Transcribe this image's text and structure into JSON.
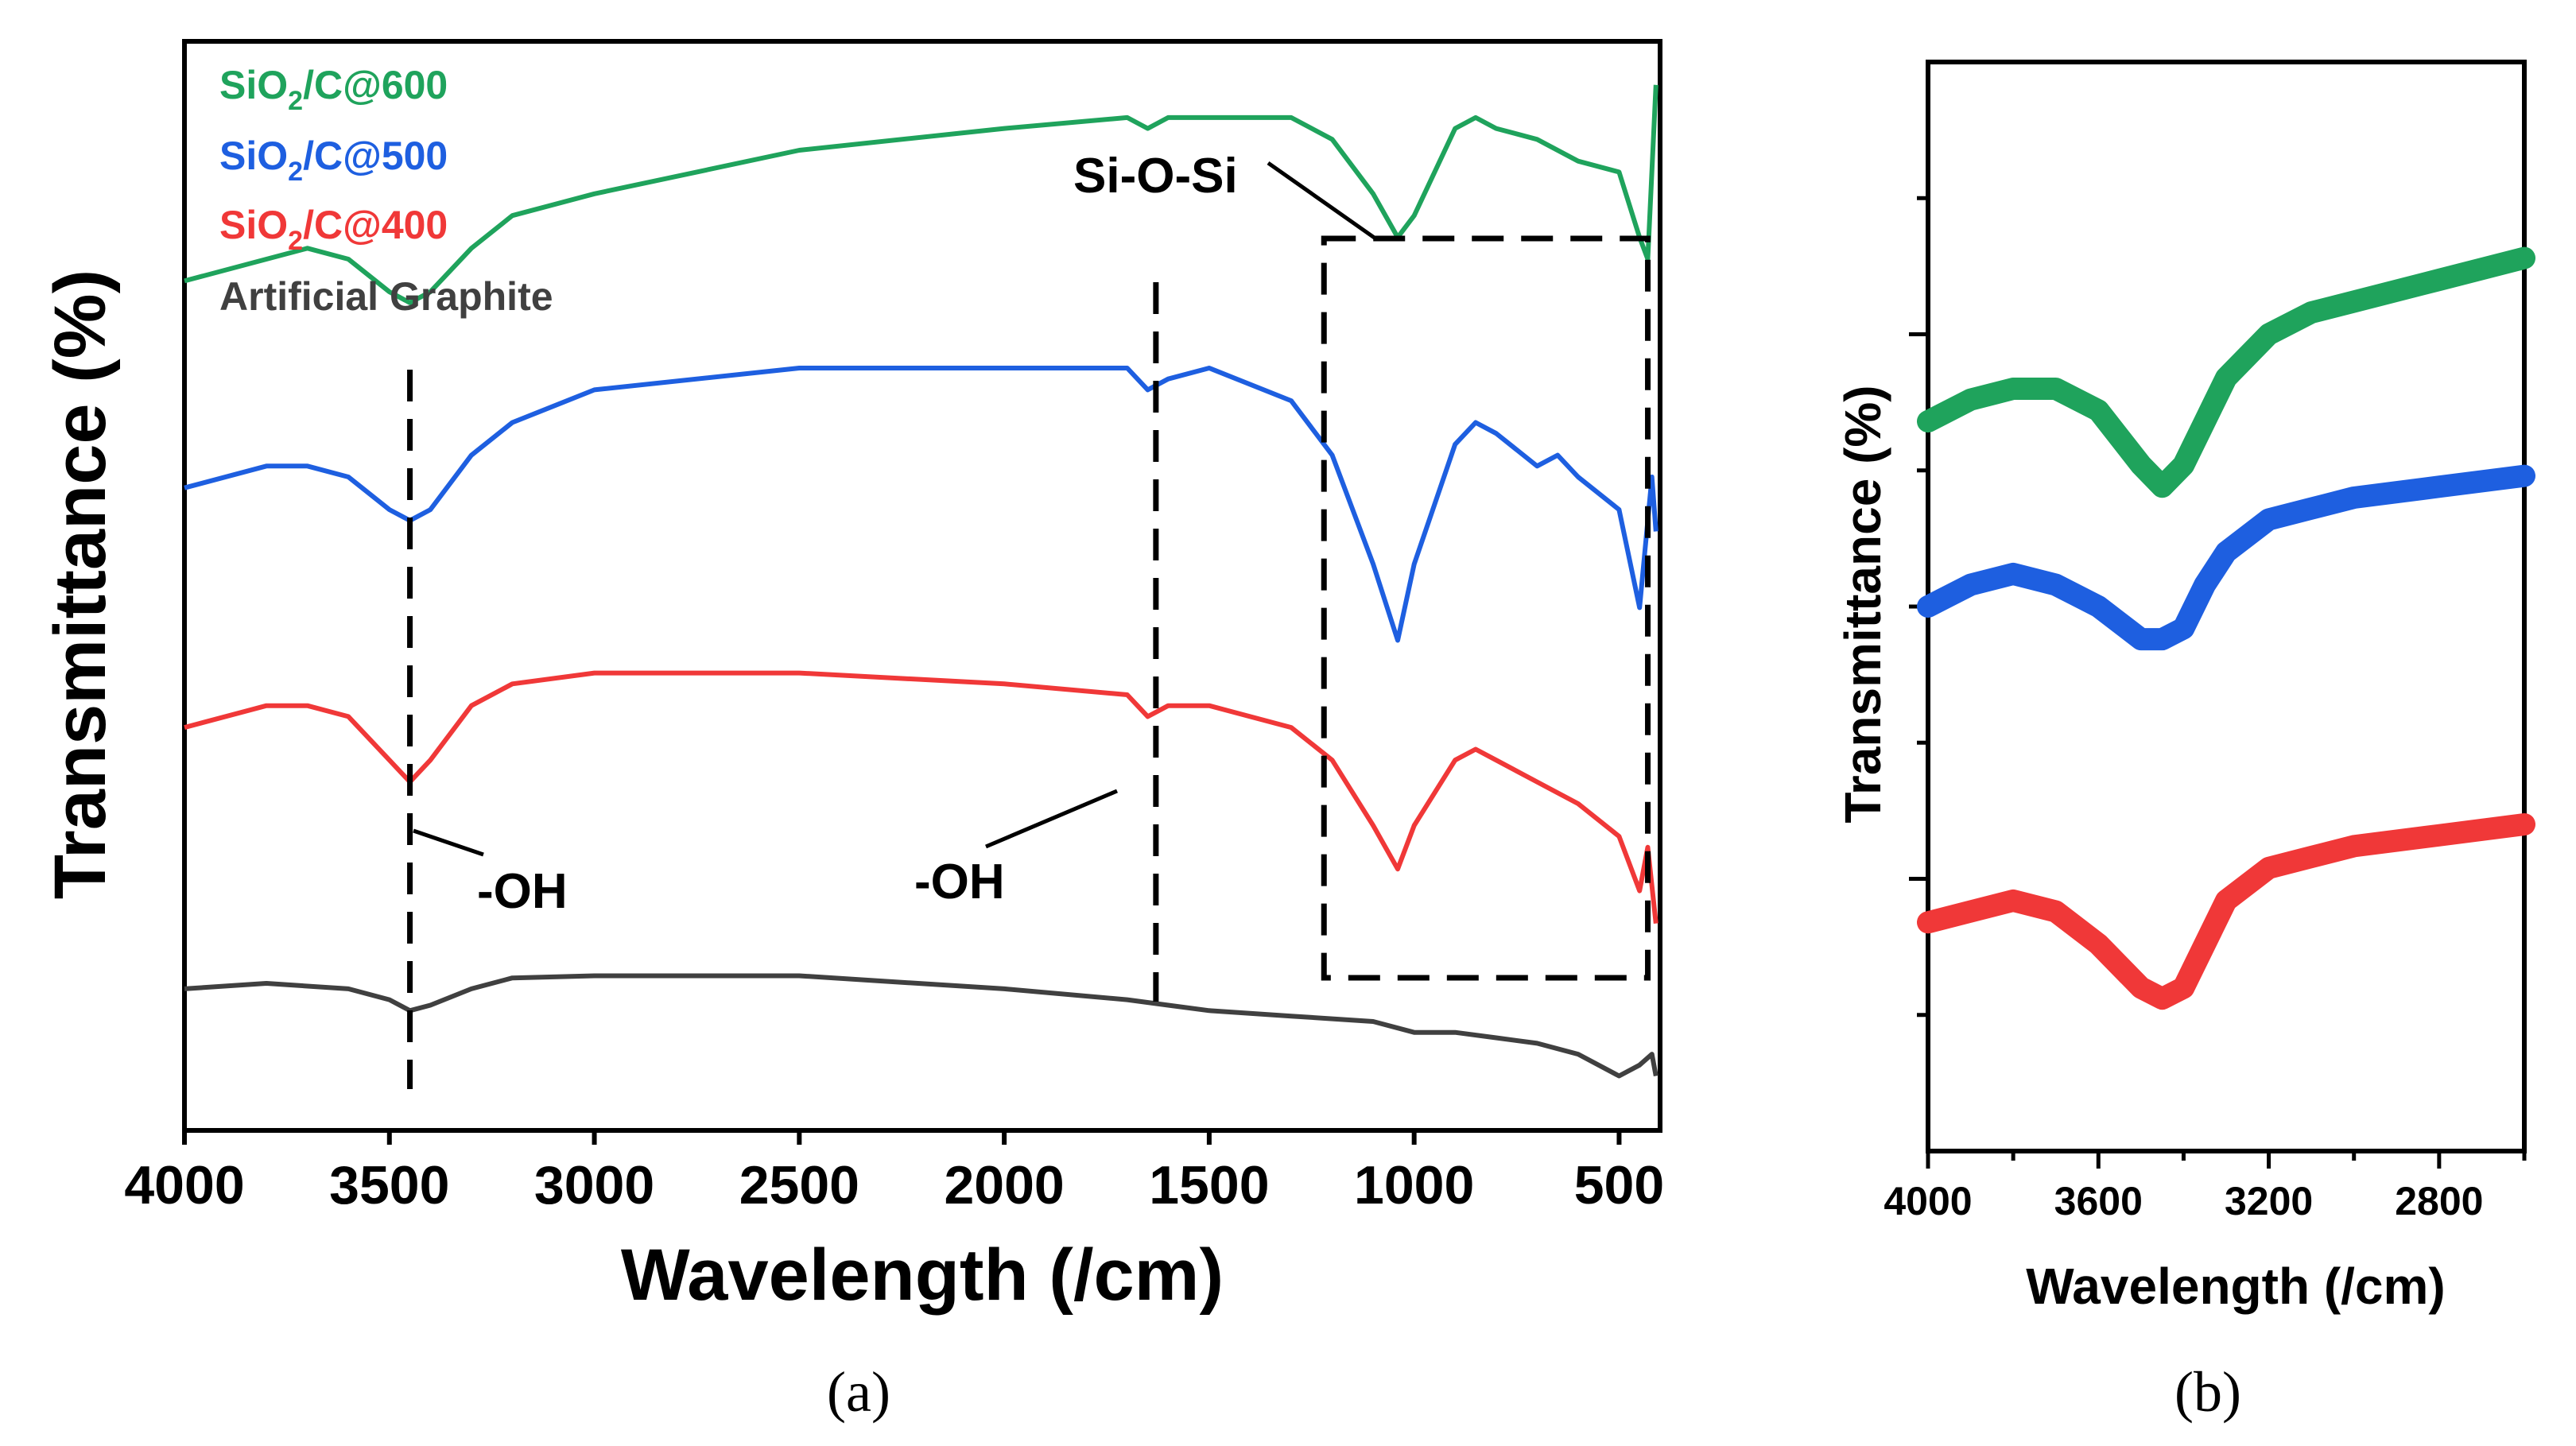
{
  "colors": {
    "green": "#1fa35c",
    "blue": "#1e5fe0",
    "red": "#f03838",
    "black": "#404040",
    "axis": "#000000"
  },
  "chart_data": [
    {
      "panel_label": "(a)",
      "type": "line",
      "title": "",
      "xlabel": "Wavelength (/cm)",
      "ylabel": "Transmittance (%)",
      "xlim": [
        4000,
        400
      ],
      "x_reversed": true,
      "xticks": [
        4000,
        3500,
        3000,
        2500,
        2000,
        1500,
        1000,
        500
      ],
      "ylim": [
        0,
        100
      ],
      "y_units": "arbitrary (curves offset vertically)",
      "legend": {
        "placement": "top-left",
        "entries": [
          {
            "text": "SiO2/C@600",
            "base": "SiO",
            "sub": "2",
            "rest": "/C@600",
            "color": "#1fa35c"
          },
          {
            "text": "SiO2/C@500",
            "base": "SiO",
            "sub": "2",
            "rest": "/C@500",
            "color": "#1e5fe0"
          },
          {
            "text": "SiO2/C@400",
            "base": "SiO",
            "sub": "2",
            "rest": "/C@400",
            "color": "#f03838"
          },
          {
            "text": "Artificial Graphite",
            "base": "Artificial Graphite",
            "sub": "",
            "rest": "",
            "color": "#404040"
          }
        ]
      },
      "annotations": {
        "oh_left": "-OH",
        "oh_right": "-OH",
        "sioSi": "Si-O-Si",
        "oh_left_line_x": 3450,
        "oh_right_line_x": 1630,
        "box_x": [
          1220,
          430
        ]
      },
      "series": [
        {
          "name": "SiO2/C@600",
          "color": "#1fa35c",
          "x": [
            4000,
            3800,
            3700,
            3600,
            3500,
            3450,
            3400,
            3300,
            3200,
            3000,
            2500,
            2000,
            1700,
            1650,
            1600,
            1500,
            1300,
            1200,
            1100,
            1040,
            1000,
            900,
            850,
            800,
            700,
            600,
            500,
            450,
            430,
            410
          ],
          "y": [
            78,
            80,
            81,
            80,
            77,
            76,
            77,
            81,
            84,
            86,
            90,
            92,
            93,
            92,
            93,
            93,
            93,
            91,
            86,
            82,
            84,
            92,
            93,
            92,
            91,
            89,
            88,
            82,
            80,
            96
          ]
        },
        {
          "name": "SiO2/C@500",
          "color": "#1e5fe0",
          "x": [
            4000,
            3800,
            3700,
            3600,
            3500,
            3450,
            3400,
            3300,
            3200,
            3000,
            2500,
            2000,
            1700,
            1650,
            1600,
            1500,
            1300,
            1200,
            1100,
            1040,
            1000,
            900,
            850,
            800,
            700,
            650,
            600,
            500,
            450,
            420,
            410
          ],
          "y": [
            59,
            61,
            61,
            60,
            57,
            56,
            57,
            62,
            65,
            68,
            70,
            70,
            70,
            68,
            69,
            70,
            67,
            62,
            52,
            45,
            52,
            63,
            65,
            64,
            61,
            62,
            60,
            57,
            48,
            60,
            55
          ]
        },
        {
          "name": "SiO2/C@400",
          "color": "#f03838",
          "x": [
            4000,
            3800,
            3700,
            3600,
            3500,
            3450,
            3400,
            3300,
            3200,
            3000,
            2500,
            2000,
            1700,
            1650,
            1600,
            1500,
            1300,
            1200,
            1100,
            1040,
            1000,
            900,
            850,
            800,
            700,
            600,
            500,
            450,
            430,
            410
          ],
          "y": [
            37,
            39,
            39,
            38,
            34,
            32,
            34,
            39,
            41,
            42,
            42,
            41,
            40,
            38,
            39,
            39,
            37,
            34,
            28,
            24,
            28,
            34,
            35,
            34,
            32,
            30,
            27,
            22,
            26,
            19
          ]
        },
        {
          "name": "Artificial Graphite",
          "color": "#404040",
          "x": [
            4000,
            3800,
            3600,
            3500,
            3450,
            3400,
            3300,
            3200,
            3000,
            2500,
            2000,
            1700,
            1600,
            1500,
            1300,
            1100,
            1000,
            900,
            800,
            700,
            600,
            500,
            450,
            420,
            410
          ],
          "y": [
            13,
            13.5,
            13,
            12,
            11,
            11.5,
            13,
            14,
            14.2,
            14.2,
            13,
            12,
            11.5,
            11,
            10.5,
            10,
            9,
            9,
            8.5,
            8,
            7,
            5,
            6,
            7,
            5
          ]
        }
      ]
    },
    {
      "panel_label": "(b)",
      "type": "line",
      "title": "",
      "xlabel": "Wavelength (/cm)",
      "ylabel": "Transmittance (%)",
      "xlim": [
        4000,
        2600
      ],
      "x_reversed": true,
      "xticks": [
        4000,
        3600,
        3200,
        2800
      ],
      "ylim": [
        0,
        100
      ],
      "y_units": "arbitrary (curves offset vertically)",
      "series": [
        {
          "name": "SiO2/C@600",
          "color": "#1fa35c",
          "x": [
            4000,
            3900,
            3800,
            3700,
            3600,
            3500,
            3450,
            3400,
            3350,
            3300,
            3200,
            3100,
            3000,
            2800,
            2600
          ],
          "y": [
            67,
            69,
            70,
            70,
            68,
            63,
            61,
            63,
            67,
            71,
            75,
            77,
            78,
            80,
            82
          ]
        },
        {
          "name": "SiO2/C@500",
          "color": "#1e5fe0",
          "x": [
            4000,
            3900,
            3800,
            3700,
            3600,
            3500,
            3450,
            3400,
            3350,
            3300,
            3200,
            3100,
            3000,
            2800,
            2600
          ],
          "y": [
            50,
            52,
            53,
            52,
            50,
            47,
            47,
            48,
            52,
            55,
            58,
            59,
            60,
            61,
            62
          ]
        },
        {
          "name": "SiO2/C@400",
          "color": "#f03838",
          "x": [
            4000,
            3900,
            3800,
            3700,
            3600,
            3500,
            3450,
            3400,
            3350,
            3300,
            3200,
            3100,
            3000,
            2800,
            2600
          ],
          "y": [
            21,
            22,
            23,
            22,
            19,
            15,
            14,
            15,
            19,
            23,
            26,
            27,
            28,
            29,
            30
          ]
        }
      ]
    }
  ]
}
